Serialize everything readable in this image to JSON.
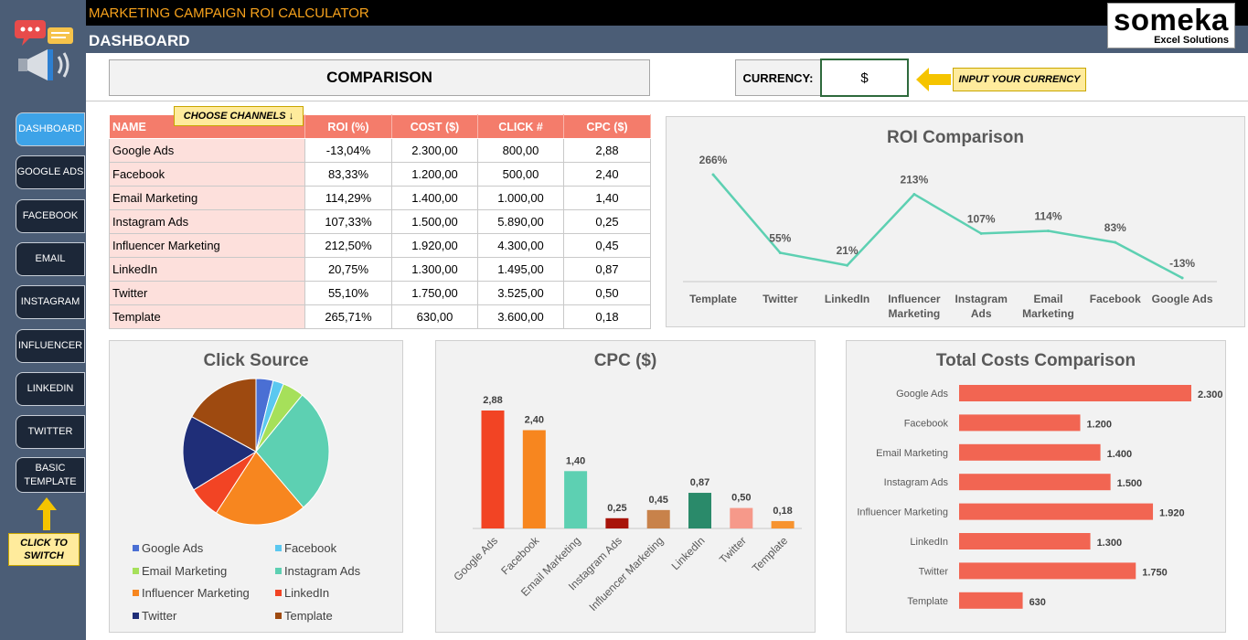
{
  "header": {
    "app_title": "MARKETING CAMPAIGN ROI CALCULATOR",
    "page_title": "DASHBOARD",
    "logo_word": "someka",
    "logo_sub": "Excel Solutions"
  },
  "sidebar": {
    "items": [
      {
        "label": "DASHBOARD",
        "active": true
      },
      {
        "label": "GOOGLE ADS"
      },
      {
        "label": "FACEBOOK"
      },
      {
        "label": "EMAIL"
      },
      {
        "label": "INSTAGRAM"
      },
      {
        "label": "INFLUENCER"
      },
      {
        "label": "LINKEDIN"
      },
      {
        "label": "TWITTER"
      },
      {
        "label": "BASIC TEMPLATE"
      }
    ],
    "click_note": "CLICK TO SWITCH"
  },
  "comparison": {
    "title": "COMPARISON",
    "currency_label": "CURRENCY:",
    "currency_value": "$",
    "currency_note": "INPUT YOUR CURRENCY",
    "choose_note": "CHOOSE CHANNELS ↓"
  },
  "table": {
    "headers": [
      "NAME",
      "ROI (%)",
      "COST ($)",
      "CLICK #",
      "CPC  ($)"
    ],
    "rows": [
      [
        "Google Ads",
        "-13,04%",
        "2.300,00",
        "800,00",
        "2,88"
      ],
      [
        "Facebook",
        "83,33%",
        "1.200,00",
        "500,00",
        "2,40"
      ],
      [
        "Email Marketing",
        "114,29%",
        "1.400,00",
        "1.000,00",
        "1,40"
      ],
      [
        "Instagram Ads",
        "107,33%",
        "1.500,00",
        "5.890,00",
        "0,25"
      ],
      [
        "Influencer Marketing",
        "212,50%",
        "1.920,00",
        "4.300,00",
        "0,45"
      ],
      [
        "LinkedIn",
        "20,75%",
        "1.300,00",
        "1.495,00",
        "0,87"
      ],
      [
        "Twitter",
        "55,10%",
        "1.750,00",
        "3.525,00",
        "0,50"
      ],
      [
        "Template",
        "265,71%",
        "630,00",
        "3.600,00",
        "0,18"
      ]
    ]
  },
  "chart_data": [
    {
      "type": "line",
      "title": "ROI Comparison",
      "categories": [
        "Template",
        "Twitter",
        "LinkedIn",
        "Influencer Marketing",
        "Instagram Ads",
        "Email Marketing",
        "Facebook",
        "Google Ads"
      ],
      "values": [
        266,
        55,
        21,
        213,
        107,
        114,
        83,
        -13
      ],
      "labels": [
        "266%",
        "55%",
        "21%",
        "213%",
        "107%",
        "114%",
        "83%",
        "-13%"
      ],
      "color": "#5dd0b2",
      "ylim": [
        -13,
        266
      ],
      "grid": false
    },
    {
      "type": "pie",
      "title": "Click Source",
      "categories": [
        "Google Ads",
        "Facebook",
        "Email Marketing",
        "Instagram Ads",
        "Influencer Marketing",
        "LinkedIn",
        "Twitter",
        "Template"
      ],
      "values": [
        800,
        500,
        1000,
        5890,
        4300,
        1495,
        3525,
        3600
      ],
      "colors": [
        "#4a6fd4",
        "#5bc8f0",
        "#a6e05a",
        "#5dd0b2",
        "#f7861f",
        "#f24424",
        "#1f2e78",
        "#9e4a10"
      ],
      "legend": "bottom"
    },
    {
      "type": "bar",
      "title": "CPC  ($)",
      "categories": [
        "Google Ads",
        "Facebook",
        "Email Marketing",
        "Instagram Ads",
        "Influencer Marketing",
        "LinkedIn",
        "Twitter",
        "Template"
      ],
      "values": [
        2.88,
        2.4,
        1.4,
        0.25,
        0.45,
        0.87,
        0.5,
        0.18
      ],
      "labels": [
        "2,88",
        "2,40",
        "1,40",
        "0,25",
        "0,45",
        "0,87",
        "0,50",
        "0,18"
      ],
      "colors": [
        "#f24424",
        "#f7861f",
        "#5dd0b2",
        "#a8140a",
        "#c8824a",
        "#2a8a6a",
        "#f6998a",
        "#f7932f"
      ],
      "ylim": [
        0,
        2.88
      ]
    },
    {
      "type": "bar",
      "orientation": "horizontal",
      "title": "Total Costs Comparison",
      "categories": [
        "Google Ads",
        "Facebook",
        "Email Marketing",
        "Instagram Ads",
        "Influencer Marketing",
        "LinkedIn",
        "Twitter",
        "Template"
      ],
      "values": [
        2300,
        1200,
        1400,
        1500,
        1920,
        1300,
        1750,
        630
      ],
      "labels": [
        "2.300",
        "1.200",
        "1.400",
        "1.500",
        "1.920",
        "1.300",
        "1.750",
        "630"
      ],
      "color": "#f26552",
      "xlim": [
        0,
        2300
      ]
    }
  ]
}
